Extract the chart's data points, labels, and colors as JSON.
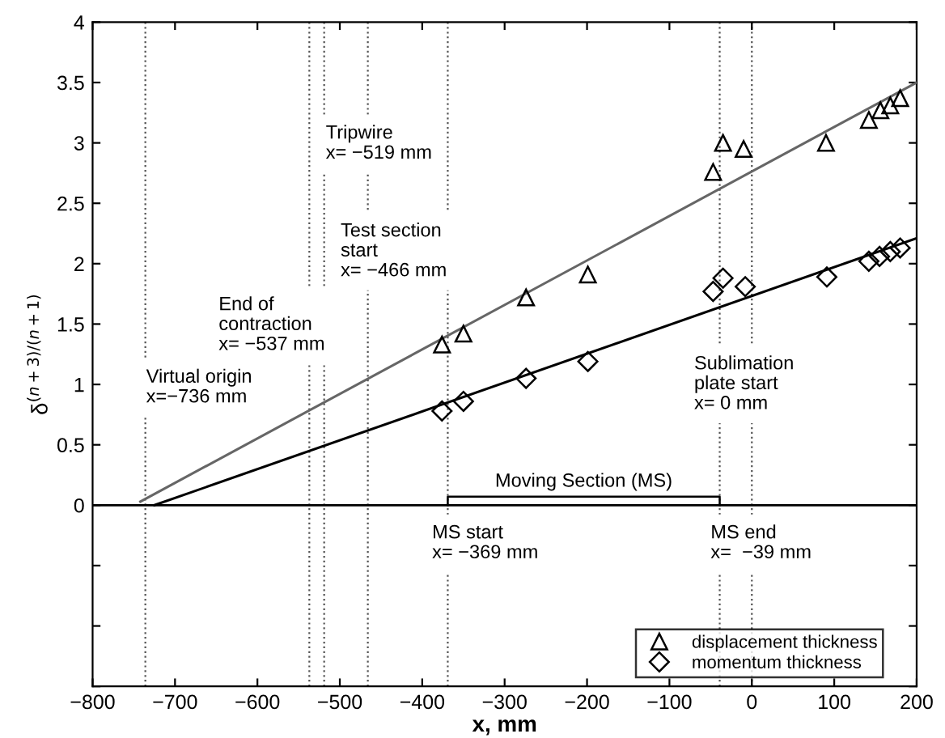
{
  "chart_data": {
    "type": "scatter",
    "xlabel": "x, mm",
    "ylabel": "δ$^{(n+3)/(n+1)}$",
    "xlim": [
      -800,
      200
    ],
    "xticks": [
      -800,
      -700,
      -600,
      -500,
      -400,
      -300,
      -200,
      -100,
      0,
      100,
      200
    ],
    "ylim": [
      -1.5,
      4
    ],
    "yticks": [
      {
        "value": -1.5,
        "label": null
      },
      {
        "value": -1,
        "label": null
      },
      {
        "value": -0.5,
        "label": null
      },
      0,
      0.5,
      1,
      1.5,
      2,
      2.5,
      3,
      3.5,
      4
    ],
    "grid": false,
    "legend": "bottom right",
    "line_style": "solid",
    "series": [
      {
        "name": "displacement thickness",
        "marker": "triangle",
        "color": "#000000",
        "x": [
          -376,
          -350,
          -274,
          -199,
          -47,
          -35,
          -10,
          90,
          142,
          156,
          168,
          180
        ],
        "values": [
          1.33,
          1.42,
          1.72,
          1.91,
          2.76,
          3.0,
          2.95,
          3.0,
          3.19,
          3.27,
          3.31,
          3.37
        ]
      },
      {
        "name": "momentum thickness",
        "marker": "diamond",
        "color": "#000000",
        "x": [
          -376,
          -350,
          -274,
          -199,
          -47,
          -35,
          -8,
          91,
          142,
          155,
          168,
          180
        ],
        "values": [
          0.78,
          0.86,
          1.05,
          1.19,
          1.77,
          1.88,
          1.81,
          1.89,
          2.02,
          2.06,
          2.1,
          2.13
        ]
      },
      {
        "type": "line",
        "marker": "none",
        "color": "#666666",
        "x": [
          -742,
          200
        ],
        "values": [
          0.03,
          3.5
        ]
      },
      {
        "type": "line",
        "marker": "none",
        "color": "#000000",
        "x": [
          -725,
          200
        ],
        "values": [
          0,
          2.21
        ]
      }
    ],
    "ref_lines": [
      {
        "axis": "y",
        "value": 0,
        "color": "#000000",
        "line_style": "solid"
      },
      {
        "axis": "x",
        "value": -736,
        "label": "Virtual origin\nx=−736 mm",
        "color": "#555555",
        "line_style": "dotted"
      },
      {
        "axis": "x",
        "value": -537,
        "label": "End of\ncontraction\nx= −537 mm",
        "color": "#555555",
        "line_style": "dotted"
      },
      {
        "axis": "x",
        "value": -519,
        "label": "Tripwire\nx= −519 mm",
        "color": "#555555",
        "line_style": "dotted"
      },
      {
        "axis": "x",
        "value": -466,
        "label": "Test section\nstart\nx= −466 mm",
        "color": "#555555",
        "line_style": "dotted"
      },
      {
        "axis": "x",
        "value": 0,
        "label": "Sublimation\nplate start\nx= 0 mm",
        "color": "#555555",
        "line_style": "dotted"
      },
      {
        "axis": "x",
        "value": -369,
        "label": "MS start\nx= −369 mm",
        "color": "#555555",
        "line_style": "dotted"
      },
      {
        "axis": "x",
        "value": -39,
        "label": "MS end\nx=  −39 mm",
        "color": "#555555",
        "line_style": "dotted"
      }
    ],
    "annotations": [
      "Moving Section (MS)"
    ]
  }
}
